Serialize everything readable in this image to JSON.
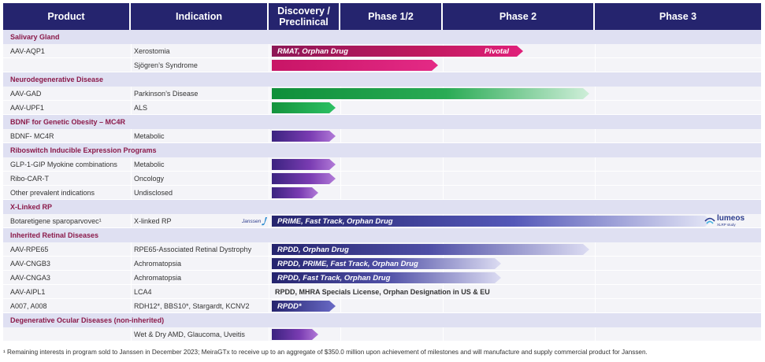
{
  "header": {
    "product": "Product",
    "indication": "Indication",
    "discovery_line1": "Discovery /",
    "discovery_line2": "Preclinical",
    "phase12": "Phase 1/2",
    "phase2": "Phase 2",
    "phase3": "Phase 3"
  },
  "colors": {
    "header_bg": "#25246e",
    "section_bg": "#dfe0f2",
    "section_text": "#8b1a4a",
    "salivary_bar": "#c0195e",
    "neuro_bar": "#1aa04a",
    "purple_bar": "#6a2aa0",
    "xlinked_bar": "#2d2c7a"
  },
  "pipeline": [
    {
      "section": "Salivary Gland",
      "items": [
        {
          "product": "AAV-AQP1",
          "indication": "Xerostomia",
          "bar_label": "RMAT, Orphan Drug",
          "extra_label": "Pivotal",
          "progress": 0.515,
          "style": "salivary"
        },
        {
          "product": "",
          "indication": "Sjögren’s Syndrome",
          "bar_label": "",
          "progress": 0.34,
          "style": "salivary2"
        }
      ]
    },
    {
      "section": "Neurodegenerative Disease",
      "items": [
        {
          "product": "AAV-GAD",
          "indication": "Parkinson’s Disease",
          "bar_label": "",
          "progress": 0.65,
          "style": "green-fade"
        },
        {
          "product": "AAV-UPF1",
          "indication": "ALS",
          "bar_label": "",
          "progress": 0.13,
          "style": "green"
        }
      ]
    },
    {
      "section": "BDNF for Genetic Obesity – MC4R",
      "items": [
        {
          "product": "BDNF- MC4R",
          "indication": "Metabolic",
          "bar_label": "",
          "progress": 0.13,
          "style": "purple"
        }
      ]
    },
    {
      "section": "Riboswitch Inducible Expression Programs",
      "items": [
        {
          "product": "GLP-1-GIP Myokine combinations",
          "indication": "Metabolic",
          "bar_label": "",
          "progress": 0.13,
          "style": "purple"
        },
        {
          "product": "Ribo-CAR-T",
          "indication": "Oncology",
          "bar_label": "",
          "progress": 0.13,
          "style": "purple"
        },
        {
          "product": "Other prevalent indications",
          "indication": "Undisclosed",
          "bar_label": "",
          "progress": 0.095,
          "style": "purple"
        }
      ]
    },
    {
      "section": "X-Linked RP",
      "items": [
        {
          "product": "Botaretigene sparoparvovec¹",
          "indication": "X-linked RP",
          "bar_label": "PRIME, Fast Track, Orphan Drug",
          "progress": 0.9,
          "style": "xlinked",
          "partner": "janssen",
          "study": "lumeos"
        }
      ]
    },
    {
      "section": "Inherited Retinal Diseases",
      "items": [
        {
          "product": "AAV-RPE65",
          "indication": "RPE65-Associated Retinal Dystrophy",
          "bar_label": "RPDD, Orphan Drug",
          "progress": 0.65,
          "style": "navy-fade"
        },
        {
          "product": "AAV-CNGB3",
          "indication": "Achromatopsia",
          "bar_label": "RPDD, PRIME, Fast Track, Orphan Drug",
          "progress": 0.47,
          "style": "navy-fade"
        },
        {
          "product": "AAV-CNGA3",
          "indication": "Achromatopsia",
          "bar_label": "RPDD, Fast Track, Orphan Drug",
          "progress": 0.47,
          "style": "navy-fade"
        },
        {
          "product": "AAV-AIPL1",
          "indication": "LCA4",
          "text_label": "RPDD, MHRA Specials License, Orphan Designation in US & EU",
          "progress": 0,
          "style": "none"
        },
        {
          "product": "A007, A008",
          "indication": "RDH12*, BBS10*, Stargardt, KCNV2",
          "bar_label": "RPDD*",
          "progress": 0.13,
          "style": "navy"
        }
      ]
    },
    {
      "section": "Degenerative Ocular Diseases (non-inherited)",
      "items": [
        {
          "product": "",
          "indication": "Wet & Dry AMD, Glaucoma, Uveitis",
          "bar_label": "",
          "progress": 0.095,
          "style": "purple"
        }
      ]
    }
  ],
  "partner_logo": {
    "janssen": "Janssen"
  },
  "study_logo": {
    "name": "lumeos",
    "sub": "XLRP study"
  },
  "footnote": "¹ Remaining interests in program sold to Janssen in December 2023; MeiraGTx to receive up to an aggregate of $350.0 million upon achievement of milestones and will manufacture and supply commercial product for Janssen."
}
